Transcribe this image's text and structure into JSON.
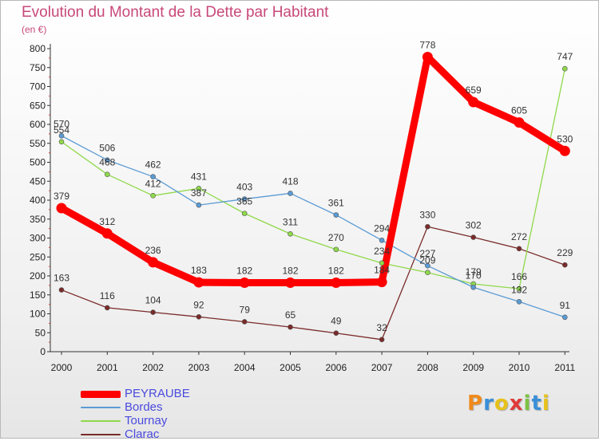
{
  "title": "Evolution du Montant de la Dette par Habitant",
  "subtitle": "(en €)",
  "logo": {
    "text": "Proxiti",
    "colors": [
      "#f08a1c",
      "#3a8fd8",
      "#e8c21a",
      "#e03a3a",
      "#7cc242",
      "#3a8fd8",
      "#e8c21a"
    ]
  },
  "chart_data": {
    "type": "line",
    "title": "Evolution du Montant de la Dette par Habitant",
    "subtitle": "(en €)",
    "x": [
      "2000",
      "2001",
      "2002",
      "2003",
      "2004",
      "2005",
      "2006",
      "2007",
      "2008",
      "2009",
      "2010",
      "2011"
    ],
    "ylim": [
      0,
      800
    ],
    "yticks": [
      0,
      50,
      100,
      150,
      200,
      250,
      300,
      350,
      400,
      450,
      500,
      550,
      600,
      650,
      700,
      750,
      800
    ],
    "grid": false,
    "legend": "bottom-left",
    "series": [
      {
        "name": "PEYRAUBE",
        "color": "#ff0000",
        "values": [
          379,
          312,
          236,
          183,
          182,
          182,
          182,
          184,
          778,
          659,
          605,
          530
        ]
      },
      {
        "name": "Bordes",
        "color": "#5b9bd5",
        "values": [
          570,
          506,
          462,
          387,
          403,
          418,
          361,
          294,
          227,
          170,
          132,
          91
        ]
      },
      {
        "name": "Tournay",
        "color": "#8fd94a",
        "values": [
          554,
          468,
          412,
          431,
          365,
          311,
          270,
          234,
          209,
          179,
          166,
          747
        ]
      },
      {
        "name": "Clarac",
        "color": "#7a2a2a",
        "values": [
          163,
          116,
          104,
          92,
          79,
          65,
          49,
          32,
          330,
          302,
          272,
          229
        ]
      }
    ]
  }
}
